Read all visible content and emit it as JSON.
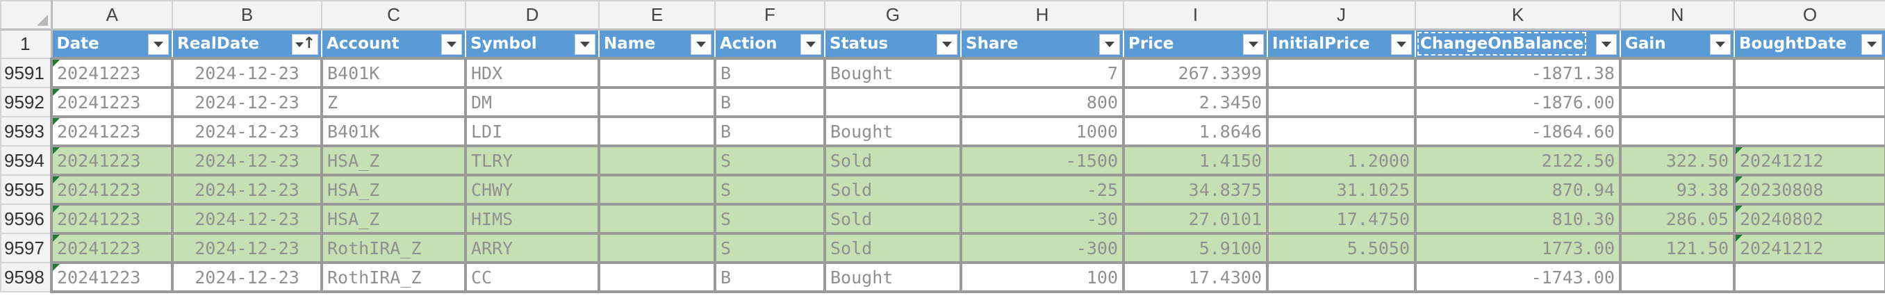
{
  "sheet": {
    "columns": [
      "A",
      "B",
      "C",
      "D",
      "E",
      "F",
      "G",
      "H",
      "I",
      "J",
      "K",
      "N",
      "O"
    ],
    "header_row_number": "1",
    "headers": [
      "Date",
      "RealDate",
      "Account",
      "Symbol",
      "Name",
      "Action",
      "Status",
      "Share",
      "Price",
      "InitialPrice",
      "ChangeOnBalance",
      "Gain",
      "BoughtDate"
    ],
    "sorted_column": "RealDate",
    "sort_direction": "ascending",
    "colors": {
      "header_fill": "#5b9bd5",
      "sold_fill": "#c6e0b4",
      "error_marker": "#1e7b34"
    },
    "rows": [
      {
        "num": "9591",
        "status_type": "bought",
        "cells": [
          "20241223",
          "2024-12-23",
          "B401K",
          "HDX",
          "",
          "B",
          "Bought",
          "7",
          "267.3399",
          "",
          "-1871.38",
          "",
          ""
        ]
      },
      {
        "num": "9592",
        "status_type": "bought",
        "cells": [
          "20241223",
          "2024-12-23",
          "Z",
          "DM",
          "",
          "B",
          "",
          "800",
          "2.3450",
          "",
          "-1876.00",
          "",
          ""
        ]
      },
      {
        "num": "9593",
        "status_type": "bought",
        "cells": [
          "20241223",
          "2024-12-23",
          "B401K",
          "LDI",
          "",
          "B",
          "Bought",
          "1000",
          "1.8646",
          "",
          "-1864.60",
          "",
          ""
        ]
      },
      {
        "num": "9594",
        "status_type": "sold",
        "cells": [
          "20241223",
          "2024-12-23",
          "HSA_Z",
          "TLRY",
          "",
          "S",
          "Sold",
          "-1500",
          "1.4150",
          "1.2000",
          "2122.50",
          "322.50",
          "20241212"
        ]
      },
      {
        "num": "9595",
        "status_type": "sold",
        "cells": [
          "20241223",
          "2024-12-23",
          "HSA_Z",
          "CHWY",
          "",
          "S",
          "Sold",
          "-25",
          "34.8375",
          "31.1025",
          "870.94",
          "93.38",
          "20230808"
        ]
      },
      {
        "num": "9596",
        "status_type": "sold",
        "cells": [
          "20241223",
          "2024-12-23",
          "HSA_Z",
          "HIMS",
          "",
          "S",
          "Sold",
          "-30",
          "27.0101",
          "17.4750",
          "810.30",
          "286.05",
          "20240802"
        ]
      },
      {
        "num": "9597",
        "status_type": "sold",
        "cells": [
          "20241223",
          "2024-12-23",
          "RothIRA_Z",
          "ARRY",
          "",
          "S",
          "Sold",
          "-300",
          "5.9100",
          "5.5050",
          "1773.00",
          "121.50",
          "20241212"
        ]
      },
      {
        "num": "9598",
        "status_type": "bought",
        "cells": [
          "20241223",
          "2024-12-23",
          "RothIRA_Z",
          "CC",
          "",
          "B",
          "Bought",
          "100",
          "17.4300",
          "",
          "-1743.00",
          "",
          ""
        ]
      }
    ]
  }
}
